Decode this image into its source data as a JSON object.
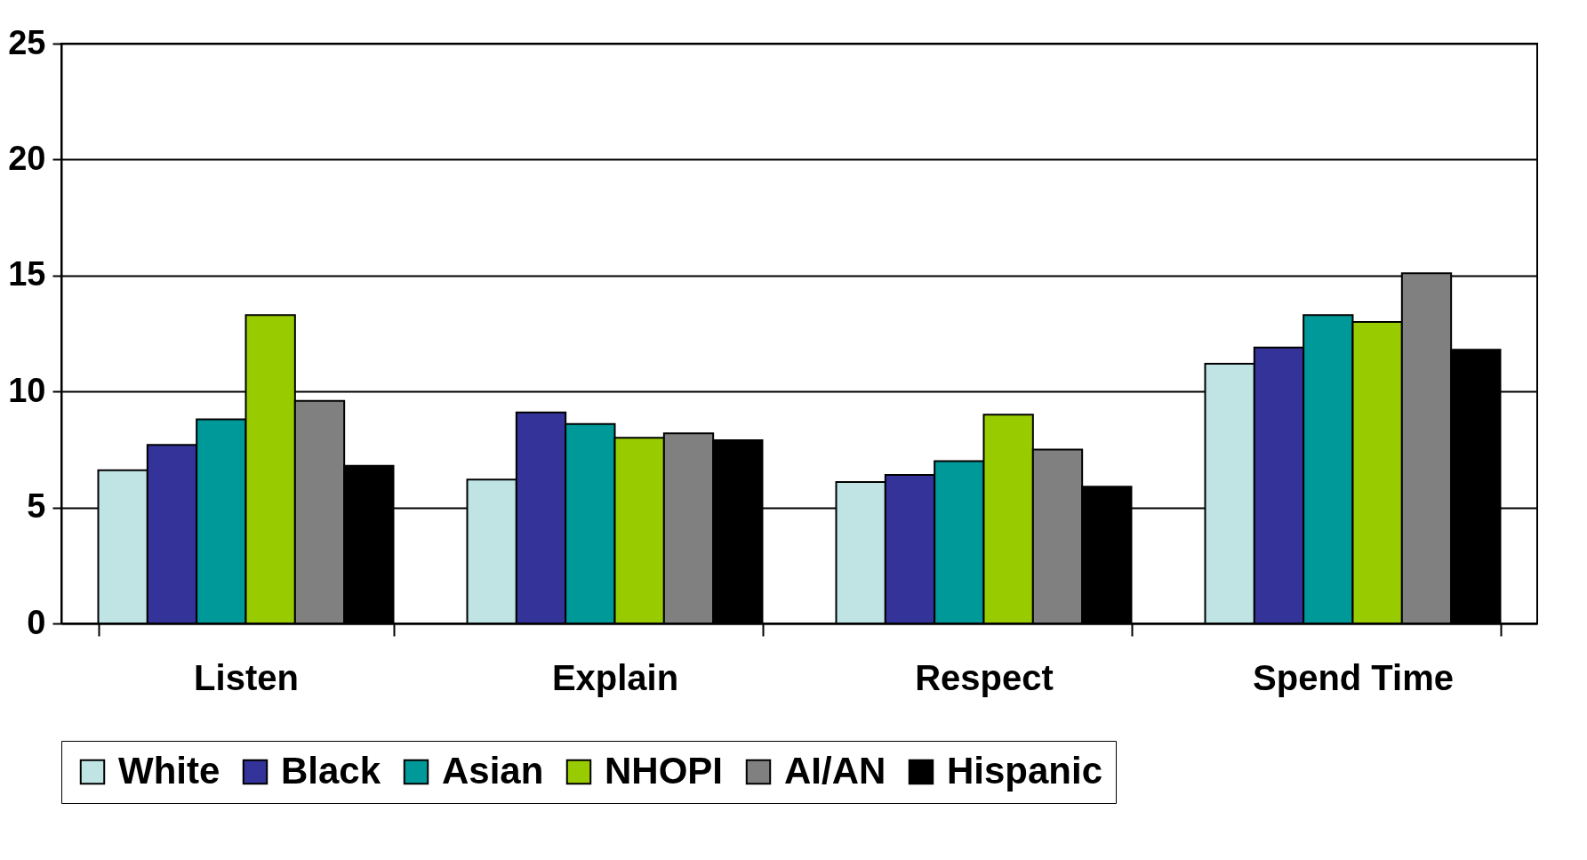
{
  "chart_data": {
    "type": "bar",
    "categories": [
      "Listen",
      "Explain",
      "Respect",
      "Spend Time"
    ],
    "series": [
      {
        "name": "White",
        "color": "#c0e4e4",
        "values": [
          6.6,
          6.2,
          6.1,
          11.2
        ]
      },
      {
        "name": "Black",
        "color": "#333399",
        "values": [
          7.7,
          9.1,
          6.4,
          11.9
        ]
      },
      {
        "name": "Asian",
        "color": "#009999",
        "values": [
          8.8,
          8.6,
          7.0,
          13.3
        ]
      },
      {
        "name": "NHOPI",
        "color": "#99cc00",
        "values": [
          13.3,
          8.0,
          9.0,
          13.0
        ]
      },
      {
        "name": "AI/AN",
        "color": "#808080",
        "values": [
          9.6,
          8.2,
          7.5,
          15.1
        ]
      },
      {
        "name": "Hispanic",
        "color": "#000000",
        "values": [
          6.8,
          7.9,
          5.9,
          11.8
        ]
      }
    ],
    "ylim": [
      0,
      25
    ],
    "yticks": [
      0,
      5,
      10,
      15,
      20,
      25
    ],
    "grid": "y",
    "legend": "bottom"
  }
}
